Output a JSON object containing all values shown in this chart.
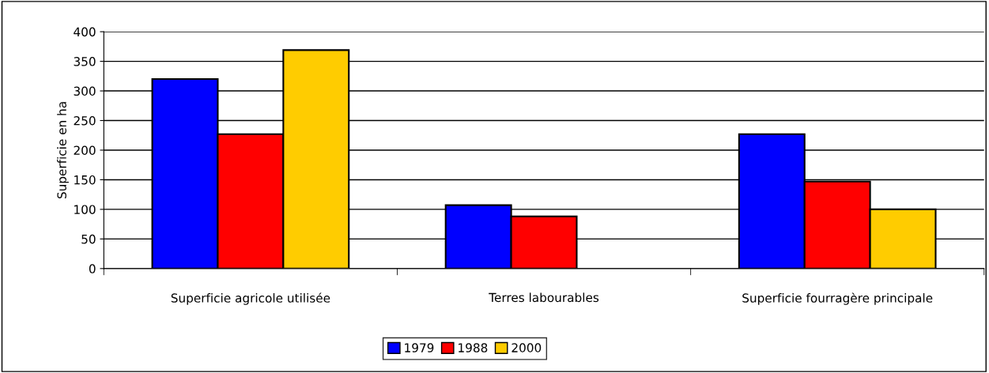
{
  "chart_data": {
    "type": "bar",
    "ylabel": "Superficie en ha",
    "categories": [
      "Superficie agricole utilisée",
      "Terres labourables",
      "Superficie fourragère principale"
    ],
    "series": [
      {
        "name": "1979",
        "color": "#0000ff",
        "values": [
          320,
          107,
          227
        ]
      },
      {
        "name": "1988",
        "color": "#ff0000",
        "values": [
          227,
          88,
          147
        ]
      },
      {
        "name": "2000",
        "color": "#ffcc00",
        "values": [
          369,
          null,
          100
        ]
      }
    ],
    "ylim": [
      0,
      400
    ],
    "yticks": [
      0,
      50,
      100,
      150,
      200,
      250,
      300,
      350,
      400
    ],
    "grid": "y",
    "legend": "bottom"
  }
}
